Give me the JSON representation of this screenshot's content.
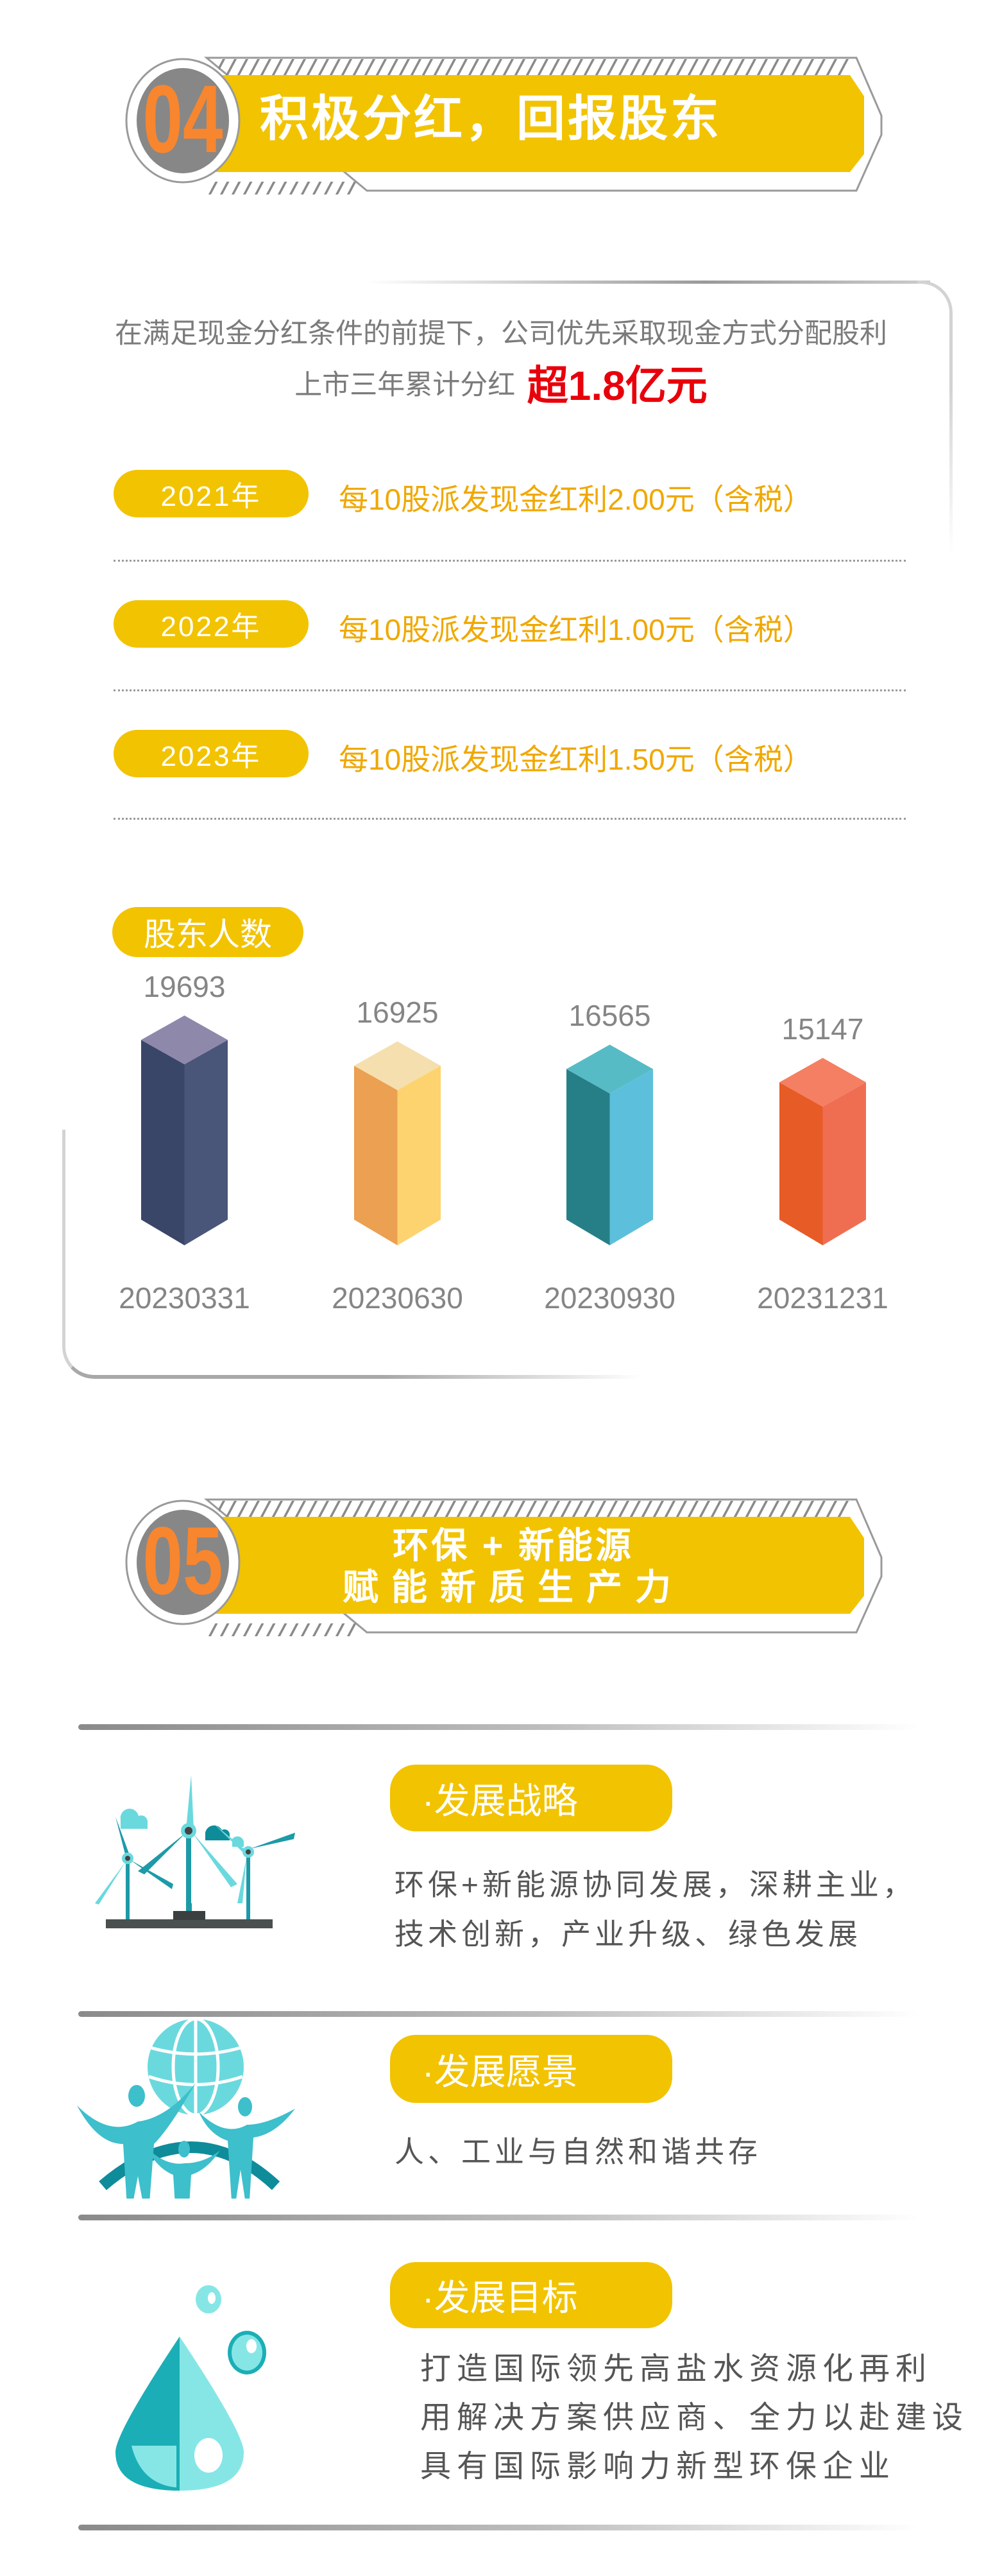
{
  "section04": {
    "number": "04",
    "title": "积极分红，回报股东",
    "intro_line1": "在满足现金分红条件的前提下，公司优先采取现金方式分配股利",
    "intro_line2_prefix": "上市三年累计分红",
    "intro_line2_highlight": "超1.8亿元",
    "dividends": [
      {
        "year": "2021年",
        "text": "每10股派发现金红利2.00元（含税）"
      },
      {
        "year": "2022年",
        "text": "每10股派发现金红利1.00元（含税）"
      },
      {
        "year": "2023年",
        "text": "每10股派发现金红利1.50元（含税）"
      }
    ],
    "shareholders_label": "股东人数"
  },
  "chart_data": {
    "type": "bar",
    "title": "股东人数",
    "categories": [
      "20230331",
      "20230630",
      "20230930",
      "20231231"
    ],
    "values": [
      19693,
      16925,
      16565,
      15147
    ],
    "value_labels": [
      "19693",
      "16925",
      "16565",
      "15147"
    ],
    "colors": [
      {
        "top": "#8e88ab",
        "left": "#3a4668",
        "right": "#4a5679"
      },
      {
        "top": "#f5dfae",
        "left": "#eba052",
        "right": "#fdd36f"
      },
      {
        "top": "#57bbc6",
        "left": "#267f87",
        "right": "#5cc0dc"
      },
      {
        "top": "#f47f62",
        "left": "#e75b27",
        "right": "#ef6e52"
      }
    ],
    "grid": false
  },
  "section05": {
    "number": "05",
    "title_line1": "环保 + 新能源",
    "title_line2": "赋能新质生产力",
    "items": [
      {
        "icon": "wind-turbine-icon",
        "label": "·发展战略",
        "lines": [
          "环保+新能源协同发展，深耕主业，",
          "技术创新，产业升级、绿色发展"
        ]
      },
      {
        "icon": "people-globe-icon",
        "label": "·发展愿景",
        "lines": [
          "人、工业与自然和谐共存"
        ]
      },
      {
        "icon": "water-drop-icon",
        "label": "·发展目标",
        "lines": [
          "打造国际领先高盐水资源化再利",
          "用解决方案供应商、全力以赴建设",
          "具有国际影响力新型环保企业"
        ]
      }
    ]
  },
  "colors": {
    "accent": "#f2c300",
    "number": "#f7862f",
    "highlight": "#e8000b",
    "year_text": "#f0a800"
  }
}
